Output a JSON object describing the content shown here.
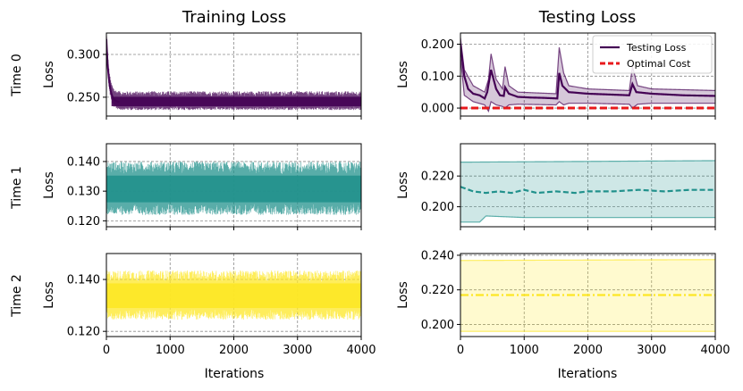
{
  "figure": {
    "column_titles": [
      "Training Loss",
      "Testing Loss"
    ],
    "row_labels": [
      "Time 0",
      "Time 1",
      "Time 2"
    ],
    "colors": [
      "#440154",
      "#21918c",
      "#fde725"
    ],
    "optimal_color": "#e8191c"
  },
  "chart_data": [
    {
      "id": "train-0",
      "type": "area",
      "title": "Training Loss",
      "ylabel": "Loss",
      "xlabel": "",
      "row_label": "Time 0",
      "xlim": [
        0,
        4000
      ],
      "ylim": [
        0.228,
        0.325
      ],
      "xticks": [
        0,
        1000,
        2000,
        3000,
        4000
      ],
      "xtick_labels": [],
      "yticks": [
        0.25,
        0.3
      ],
      "ytick_labels": [
        "0.250",
        "0.300"
      ],
      "color": "#440154",
      "series": [
        {
          "name": "Training loss",
          "start": 0.318,
          "start_decay": 0.25,
          "mean": 0.244,
          "low": 0.235,
          "high": 0.257
        }
      ],
      "grid": true
    },
    {
      "id": "test-0",
      "type": "line",
      "title": "Testing Loss",
      "ylabel": "Loss",
      "xlabel": "",
      "xlim": [
        0,
        4000
      ],
      "ylim": [
        -0.025,
        0.235
      ],
      "xticks": [
        0,
        1000,
        2000,
        3000,
        4000
      ],
      "xtick_labels": [],
      "yticks": [
        0.0,
        0.1,
        0.2
      ],
      "ytick_labels": [
        "0.000",
        "0.100",
        "0.200"
      ],
      "color": "#440154",
      "series": [
        {
          "name": "Testing Loss",
          "points": [
            [
              0,
              0.2
            ],
            [
              60,
              0.1
            ],
            [
              120,
              0.06
            ],
            [
              200,
              0.045
            ],
            [
              300,
              0.04
            ],
            [
              340,
              0.035
            ],
            [
              380,
              0.03
            ],
            [
              420,
              0.05
            ],
            [
              480,
              0.12
            ],
            [
              560,
              0.06
            ],
            [
              620,
              0.04
            ],
            [
              680,
              0.038
            ],
            [
              700,
              0.065
            ],
            [
              760,
              0.045
            ],
            [
              900,
              0.035
            ],
            [
              1100,
              0.033
            ],
            [
              1300,
              0.032
            ],
            [
              1520,
              0.03
            ],
            [
              1550,
              0.11
            ],
            [
              1600,
              0.07
            ],
            [
              1700,
              0.05
            ],
            [
              2000,
              0.045
            ],
            [
              2400,
              0.042
            ],
            [
              2650,
              0.04
            ],
            [
              2700,
              0.075
            ],
            [
              2760,
              0.05
            ],
            [
              3000,
              0.045
            ],
            [
              3500,
              0.04
            ],
            [
              4000,
              0.038
            ]
          ],
          "upper": [
            [
              0,
              0.22
            ],
            [
              60,
              0.12
            ],
            [
              200,
              0.07
            ],
            [
              380,
              0.05
            ],
            [
              440,
              0.09
            ],
            [
              480,
              0.17
            ],
            [
              560,
              0.09
            ],
            [
              660,
              0.06
            ],
            [
              700,
              0.13
            ],
            [
              760,
              0.07
            ],
            [
              900,
              0.05
            ],
            [
              1500,
              0.045
            ],
            [
              1550,
              0.19
            ],
            [
              1620,
              0.11
            ],
            [
              1700,
              0.07
            ],
            [
              2000,
              0.06
            ],
            [
              2650,
              0.055
            ],
            [
              2700,
              0.13
            ],
            [
              2780,
              0.07
            ],
            [
              3000,
              0.06
            ],
            [
              4000,
              0.055
            ]
          ],
          "lower": [
            [
              0,
              0.16
            ],
            [
              60,
              0.04
            ],
            [
              200,
              0.02
            ],
            [
              380,
              0.01
            ],
            [
              440,
              -0.01
            ],
            [
              480,
              0.02
            ],
            [
              560,
              0.01
            ],
            [
              660,
              0.005
            ],
            [
              700,
              0.0
            ],
            [
              760,
              0.01
            ],
            [
              900,
              0.012
            ],
            [
              1500,
              0.01
            ],
            [
              1550,
              0.02
            ],
            [
              1620,
              0.01
            ],
            [
              1700,
              0.015
            ],
            [
              2000,
              0.015
            ],
            [
              2650,
              0.012
            ],
            [
              2700,
              0.0
            ],
            [
              2780,
              0.012
            ],
            [
              3000,
              0.015
            ],
            [
              4000,
              0.015
            ]
          ]
        },
        {
          "name": "Optimal Cost",
          "value": 0.0
        }
      ],
      "legend": {
        "position": "top-right",
        "entries": [
          "Testing Loss",
          "Optimal Cost"
        ]
      },
      "grid": true
    },
    {
      "id": "train-1",
      "type": "area",
      "title": "",
      "ylabel": "Loss",
      "xlabel": "",
      "row_label": "Time 1",
      "xlim": [
        0,
        4000
      ],
      "ylim": [
        0.118,
        0.146
      ],
      "xticks": [
        0,
        1000,
        2000,
        3000,
        4000
      ],
      "xtick_labels": [],
      "yticks": [
        0.12,
        0.13,
        0.14
      ],
      "ytick_labels": [
        "0.120",
        "0.130",
        "0.140"
      ],
      "color": "#21918c",
      "series": [
        {
          "name": "Training loss",
          "start": 0.13,
          "start_decay": 0.0,
          "mean": 0.1305,
          "low": 0.122,
          "high": 0.14
        }
      ],
      "grid": true
    },
    {
      "id": "test-1",
      "type": "line",
      "title": "",
      "ylabel": "Loss",
      "xlabel": "",
      "xlim": [
        0,
        4000
      ],
      "ylim": [
        0.187,
        0.241
      ],
      "xticks": [
        0,
        1000,
        2000,
        3000,
        4000
      ],
      "xtick_labels": [],
      "yticks": [
        0.2,
        0.22
      ],
      "ytick_labels": [
        "0.200",
        "0.220"
      ],
      "color": "#21918c",
      "series": [
        {
          "name": "Testing Loss",
          "points": [
            [
              0,
              0.213
            ],
            [
              200,
              0.21
            ],
            [
              400,
              0.209
            ],
            [
              600,
              0.21
            ],
            [
              800,
              0.209
            ],
            [
              1000,
              0.211
            ],
            [
              1200,
              0.209
            ],
            [
              1500,
              0.21
            ],
            [
              1800,
              0.209
            ],
            [
              2000,
              0.21
            ],
            [
              2400,
              0.21
            ],
            [
              2800,
              0.211
            ],
            [
              3200,
              0.21
            ],
            [
              3600,
              0.211
            ],
            [
              4000,
              0.211
            ]
          ],
          "upper": [
            [
              0,
              0.229
            ],
            [
              4000,
              0.23
            ]
          ],
          "lower": [
            [
              0,
              0.19
            ],
            [
              300,
              0.19
            ],
            [
              400,
              0.194
            ],
            [
              1000,
              0.193
            ],
            [
              2000,
              0.193
            ],
            [
              4000,
              0.193
            ]
          ]
        }
      ],
      "grid": true
    },
    {
      "id": "train-2",
      "type": "area",
      "title": "",
      "ylabel": "Loss",
      "xlabel": "Iterations",
      "row_label": "Time 2",
      "xlim": [
        0,
        4000
      ],
      "ylim": [
        0.118,
        0.15
      ],
      "xticks": [
        0,
        1000,
        2000,
        3000,
        4000
      ],
      "xtick_labels": [
        "0",
        "1000",
        "2000",
        "3000",
        "4000"
      ],
      "yticks": [
        0.12,
        0.14
      ],
      "ytick_labels": [
        "0.120",
        "0.140"
      ],
      "color": "#fde725",
      "series": [
        {
          "name": "Training loss",
          "start": 0.134,
          "start_decay": 0.0,
          "mean": 0.1335,
          "low": 0.1245,
          "high": 0.1435
        }
      ],
      "grid": true
    },
    {
      "id": "test-2",
      "type": "line",
      "title": "",
      "ylabel": "Loss",
      "xlabel": "Iterations",
      "xlim": [
        0,
        4000
      ],
      "ylim": [
        0.193,
        0.241
      ],
      "xticks": [
        0,
        1000,
        2000,
        3000,
        4000
      ],
      "xtick_labels": [
        "0",
        "1000",
        "2000",
        "3000",
        "4000"
      ],
      "yticks": [
        0.2,
        0.22,
        0.24
      ],
      "ytick_labels": [
        "0.200",
        "0.220",
        "0.240"
      ],
      "color": "#fde725",
      "series": [
        {
          "name": "Testing Loss",
          "points": [
            [
              0,
              0.217
            ],
            [
              4000,
              0.217
            ]
          ],
          "upper": [
            [
              0,
              0.237
            ],
            [
              4000,
              0.2375
            ]
          ],
          "lower": [
            [
              0,
              0.196
            ],
            [
              4000,
              0.196
            ]
          ]
        }
      ],
      "grid": true
    }
  ]
}
